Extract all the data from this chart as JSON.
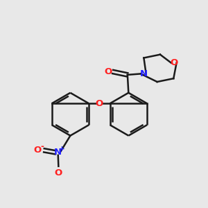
{
  "bg_color": "#e8e8e8",
  "bond_color": "#1a1a1a",
  "n_color": "#2020ff",
  "o_color": "#ff2020",
  "lw": 1.8,
  "fig_size": [
    3.0,
    3.0
  ],
  "dpi": 100,
  "xlim": [
    0,
    10
  ],
  "ylim": [
    0,
    10
  ]
}
